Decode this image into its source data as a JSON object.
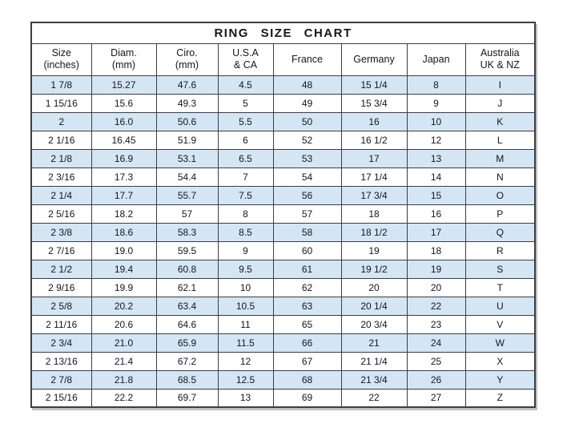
{
  "colors": {
    "row_shaded": "#d4e6f4",
    "row_plain": "#ffffff",
    "border": "#3c3c44",
    "text": "#15151f",
    "page_background": "#ffffff"
  },
  "chart_data": {
    "type": "table",
    "title": "RING  SIZE  CHART",
    "columns": [
      "Size (inches)",
      "Diam. (mm)",
      "Ciro. (mm)",
      "U.S.A & CA",
      "France",
      "Germany",
      "Japan",
      "Australia UK & NZ"
    ],
    "columns_two_line": [
      [
        "Size",
        "(inches)"
      ],
      [
        "Diam.",
        "(mm)"
      ],
      [
        "Ciro.",
        "(mm)"
      ],
      [
        "U.S.A",
        "& CA"
      ],
      [
        "France",
        ""
      ],
      [
        "Germany",
        ""
      ],
      [
        "Japan",
        ""
      ],
      [
        "Australia",
        "UK & NZ"
      ]
    ],
    "rows": [
      [
        "1 7/8",
        "15.27",
        "47.6",
        "4.5",
        "48",
        "15 1/4",
        "8",
        "I"
      ],
      [
        "1 15/16",
        "15.6",
        "49.3",
        "5",
        "49",
        "15 3/4",
        "9",
        "J"
      ],
      [
        "2",
        "16.0",
        "50.6",
        "5.5",
        "50",
        "16",
        "10",
        "K"
      ],
      [
        "2 1/16",
        "16.45",
        "51.9",
        "6",
        "52",
        "16 1/2",
        "12",
        "L"
      ],
      [
        "2 1/8",
        "16.9",
        "53.1",
        "6.5",
        "53",
        "17",
        "13",
        "M"
      ],
      [
        "2 3/16",
        "17.3",
        "54.4",
        "7",
        "54",
        "17 1/4",
        "14",
        "N"
      ],
      [
        "2 1/4",
        "17.7",
        "55.7",
        "7.5",
        "56",
        "17 3/4",
        "15",
        "O"
      ],
      [
        "2 5/16",
        "18.2",
        "57",
        "8",
        "57",
        "18",
        "16",
        "P"
      ],
      [
        "2 3/8",
        "18.6",
        "58.3",
        "8.5",
        "58",
        "18 1/2",
        "17",
        "Q"
      ],
      [
        "2 7/16",
        "19.0",
        "59.5",
        "9",
        "60",
        "19",
        "18",
        "R"
      ],
      [
        "2 1/2",
        "19.4",
        "60.8",
        "9.5",
        "61",
        "19 1/2",
        "19",
        "S"
      ],
      [
        "2 9/16",
        "19.9",
        "62.1",
        "10",
        "62",
        "20",
        "20",
        "T"
      ],
      [
        "2 5/8",
        "20.2",
        "63.4",
        "10.5",
        "63",
        "20 1/4",
        "22",
        "U"
      ],
      [
        "2 11/16",
        "20.6",
        "64.6",
        "11",
        "65",
        "20 3/4",
        "23",
        "V"
      ],
      [
        "2 3/4",
        "21.0",
        "65.9",
        "11.5",
        "66",
        "21",
        "24",
        "W"
      ],
      [
        "2 13/16",
        "21.4",
        "67.2",
        "12",
        "67",
        "21 1/4",
        "25",
        "X"
      ],
      [
        "2 7/8",
        "21.8",
        "68.5",
        "12.5",
        "68",
        "21 3/4",
        "26",
        "Y"
      ],
      [
        "2 15/16",
        "22.2",
        "69.7",
        "13",
        "69",
        "22",
        "27",
        "Z"
      ]
    ],
    "layout": {
      "zebra": "rows at even 0-based index are shaded light blue",
      "grid": true,
      "header_rows": 2
    }
  }
}
